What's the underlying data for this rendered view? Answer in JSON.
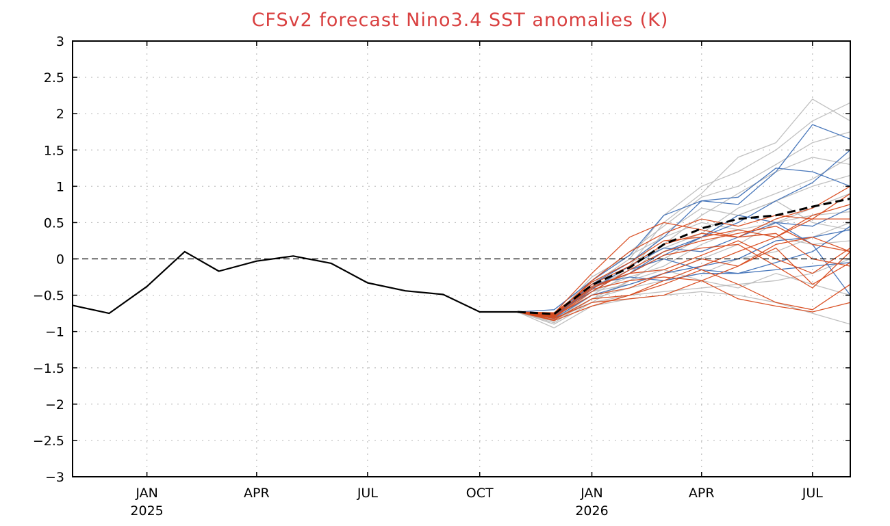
{
  "chart_data": {
    "type": "line",
    "title": "CFSv2 forecast Nino3.4 SST anomalies (K)",
    "xlabel": "",
    "ylabel": "",
    "x_range": [
      "2024-11-15",
      "2026-08-15"
    ],
    "ylim": [
      -3,
      3
    ],
    "yticks": [
      -3,
      -2.5,
      -2,
      -1.5,
      -1,
      -0.5,
      0,
      0.5,
      1,
      1.5,
      2,
      2.5,
      3
    ],
    "ytick_labels": [
      "−3",
      "−2.5",
      "−2",
      "−1.5",
      "−1",
      "−0.5",
      "0",
      "0.5",
      "1",
      "1.5",
      "2",
      "2.5",
      "3"
    ],
    "xticks": [
      {
        "date": "2025-01-15",
        "label": "JAN",
        "year": "2025"
      },
      {
        "date": "2025-04-15",
        "label": "APR",
        "year": ""
      },
      {
        "date": "2025-07-15",
        "label": "JUL",
        "year": ""
      },
      {
        "date": "2025-10-15",
        "label": "OCT",
        "year": ""
      },
      {
        "date": "2026-01-15",
        "label": "JAN",
        "year": "2026"
      },
      {
        "date": "2026-04-15",
        "label": "APR",
        "year": ""
      },
      {
        "date": "2026-07-15",
        "label": "JUL",
        "year": ""
      }
    ],
    "grid": true,
    "zero_line": true,
    "colors": {
      "title": "#d94040",
      "observed": "#000000",
      "mean": "#000000",
      "gray_members": "#b9b9b9",
      "blue_members": "#3d6fb6",
      "red_members": "#d84a1c",
      "grid": "#bdbdbd"
    },
    "observed": {
      "x": [
        "2024-11-15",
        "2024-12-15",
        "2025-01-15",
        "2025-02-15",
        "2025-03-15",
        "2025-04-15",
        "2025-05-15",
        "2025-06-15",
        "2025-07-15",
        "2025-08-15",
        "2025-09-15",
        "2025-10-15",
        "2025-11-15"
      ],
      "values": [
        -0.64,
        -0.75,
        -0.38,
        0.1,
        -0.17,
        -0.03,
        0.04,
        -0.06,
        -0.33,
        -0.44,
        -0.49,
        -0.73,
        -0.73
      ]
    },
    "ensemble_mean": {
      "x": [
        "2025-11-15",
        "2025-12-15",
        "2026-01-15",
        "2026-02-15",
        "2026-03-15",
        "2026-04-15",
        "2026-05-15",
        "2026-06-15",
        "2026-07-15",
        "2026-08-15"
      ],
      "values": [
        -0.73,
        -0.76,
        -0.36,
        -0.12,
        0.2,
        0.42,
        0.55,
        0.6,
        0.72,
        0.83
      ]
    },
    "members_x": [
      "2025-11-15",
      "2025-12-15",
      "2026-01-15",
      "2026-02-15",
      "2026-03-15",
      "2026-04-15",
      "2026-05-15",
      "2026-06-15",
      "2026-07-15",
      "2026-08-15"
    ],
    "members": [
      {
        "group": "gray",
        "values": [
          -0.73,
          -0.82,
          -0.4,
          -0.1,
          0.5,
          0.9,
          1.4,
          1.6,
          2.2,
          1.9
        ]
      },
      {
        "group": "gray",
        "values": [
          -0.73,
          -0.79,
          -0.35,
          0.0,
          0.6,
          1.0,
          1.2,
          1.5,
          1.9,
          2.15
        ]
      },
      {
        "group": "gray",
        "values": [
          -0.73,
          -0.8,
          -0.3,
          0.1,
          0.45,
          0.85,
          1.0,
          1.3,
          1.6,
          1.75
        ]
      },
      {
        "group": "gray",
        "values": [
          -0.73,
          -0.85,
          -0.5,
          -0.2,
          0.2,
          0.6,
          0.9,
          1.2,
          1.4,
          1.3
        ]
      },
      {
        "group": "gray",
        "values": [
          -0.73,
          -0.9,
          -0.6,
          -0.3,
          0.0,
          0.3,
          0.6,
          0.8,
          1.0,
          1.15
        ]
      },
      {
        "group": "gray",
        "values": [
          -0.73,
          -0.78,
          -0.45,
          -0.25,
          -0.1,
          0.2,
          0.4,
          0.5,
          0.7,
          0.9
        ]
      },
      {
        "group": "gray",
        "values": [
          -0.73,
          -0.88,
          -0.55,
          -0.4,
          -0.3,
          -0.2,
          0.0,
          0.1,
          0.3,
          0.5
        ]
      },
      {
        "group": "gray",
        "values": [
          -0.73,
          -0.84,
          -0.6,
          -0.5,
          -0.45,
          -0.4,
          -0.35,
          -0.3,
          -0.2,
          0.0
        ]
      },
      {
        "group": "gray",
        "values": [
          -0.73,
          -0.95,
          -0.65,
          -0.55,
          -0.5,
          -0.45,
          -0.5,
          -0.6,
          -0.75,
          -0.9
        ]
      },
      {
        "group": "gray",
        "values": [
          -0.73,
          -0.8,
          -0.25,
          0.05,
          0.3,
          0.5,
          0.4,
          0.3,
          0.2,
          0.25
        ]
      },
      {
        "group": "gray",
        "values": [
          -0.73,
          -0.82,
          -0.35,
          -0.05,
          0.15,
          0.35,
          0.7,
          0.9,
          1.1,
          1.4
        ]
      },
      {
        "group": "gray",
        "values": [
          -0.73,
          -0.86,
          -0.45,
          -0.35,
          -0.2,
          0.0,
          0.2,
          0.5,
          0.6,
          0.65
        ]
      },
      {
        "group": "gray",
        "values": [
          -0.73,
          -0.77,
          -0.4,
          -0.15,
          0.35,
          0.7,
          0.6,
          0.8,
          0.5,
          0.4
        ]
      },
      {
        "group": "gray",
        "values": [
          -0.73,
          -0.83,
          -0.55,
          -0.3,
          -0.15,
          -0.3,
          -0.4,
          -0.2,
          -0.35,
          -0.5
        ]
      },
      {
        "group": "blue",
        "values": [
          -0.73,
          -0.8,
          -0.35,
          -0.05,
          0.3,
          0.8,
          0.85,
          1.25,
          1.2,
          1.0
        ]
      },
      {
        "group": "blue",
        "values": [
          -0.73,
          -0.7,
          -0.3,
          0.05,
          0.6,
          0.8,
          0.75,
          1.2,
          1.85,
          1.65
        ]
      },
      {
        "group": "blue",
        "values": [
          -0.73,
          -0.78,
          -0.4,
          -0.2,
          0.05,
          0.3,
          0.5,
          0.8,
          1.05,
          1.5
        ]
      },
      {
        "group": "blue",
        "values": [
          -0.73,
          -0.75,
          -0.45,
          -0.15,
          0.0,
          -0.15,
          -0.2,
          -0.05,
          0.1,
          0.45
        ]
      },
      {
        "group": "blue",
        "values": [
          -0.73,
          -0.82,
          -0.5,
          -0.35,
          -0.2,
          -0.1,
          0.0,
          0.25,
          0.3,
          0.4
        ]
      },
      {
        "group": "blue",
        "values": [
          -0.73,
          -0.76,
          -0.35,
          -0.25,
          -0.3,
          -0.2,
          -0.2,
          -0.15,
          -0.1,
          -0.05
        ]
      },
      {
        "group": "blue",
        "values": [
          -0.73,
          -0.79,
          -0.42,
          -0.1,
          0.15,
          0.1,
          0.3,
          0.5,
          0.45,
          0.7
        ]
      },
      {
        "group": "blue",
        "values": [
          -0.73,
          -0.8,
          -0.38,
          -0.2,
          0.1,
          0.3,
          0.6,
          0.5,
          0.2,
          -0.5
        ]
      },
      {
        "group": "red",
        "values": [
          -0.73,
          -0.75,
          -0.2,
          0.3,
          0.5,
          0.4,
          0.3,
          0.55,
          0.7,
          1.0
        ]
      },
      {
        "group": "red",
        "values": [
          -0.73,
          -0.78,
          -0.3,
          0.1,
          0.35,
          0.55,
          0.45,
          0.6,
          0.55,
          0.55
        ]
      },
      {
        "group": "red",
        "values": [
          -0.73,
          -0.81,
          -0.45,
          -0.15,
          0.1,
          0.25,
          0.35,
          0.45,
          0.2,
          0.1
        ]
      },
      {
        "group": "red",
        "values": [
          -0.73,
          -0.79,
          -0.5,
          -0.4,
          -0.2,
          0.0,
          -0.1,
          0.2,
          0.3,
          0.1
        ]
      },
      {
        "group": "red",
        "values": [
          -0.73,
          -0.84,
          -0.55,
          -0.5,
          -0.35,
          -0.15,
          -0.35,
          -0.6,
          -0.7,
          -0.35
        ]
      },
      {
        "group": "red",
        "values": [
          -0.73,
          -0.82,
          -0.6,
          -0.55,
          -0.5,
          -0.3,
          -0.55,
          -0.65,
          -0.73,
          -0.6
        ]
      },
      {
        "group": "red",
        "values": [
          -0.73,
          -0.74,
          -0.35,
          -0.1,
          0.2,
          0.35,
          0.3,
          0.35,
          0.0,
          -0.1
        ]
      },
      {
        "group": "red",
        "values": [
          -0.73,
          -0.77,
          -0.4,
          -0.2,
          -0.15,
          0.05,
          0.25,
          0.0,
          -0.2,
          0.15
        ]
      },
      {
        "group": "red",
        "values": [
          -0.73,
          -0.8,
          -0.42,
          -0.3,
          -0.25,
          -0.3,
          -0.1,
          0.15,
          -0.35,
          -0.05
        ]
      },
      {
        "group": "red",
        "values": [
          -0.73,
          -0.76,
          -0.32,
          -0.05,
          0.25,
          0.3,
          0.4,
          0.3,
          0.55,
          0.9
        ]
      },
      {
        "group": "red",
        "values": [
          -0.73,
          -0.85,
          -0.65,
          -0.5,
          -0.3,
          -0.1,
          0.1,
          0.3,
          0.6,
          0.75
        ]
      },
      {
        "group": "red",
        "values": [
          -0.73,
          -0.78,
          -0.38,
          -0.2,
          0.05,
          0.15,
          0.2,
          -0.1,
          -0.4,
          0.1
        ]
      }
    ]
  }
}
